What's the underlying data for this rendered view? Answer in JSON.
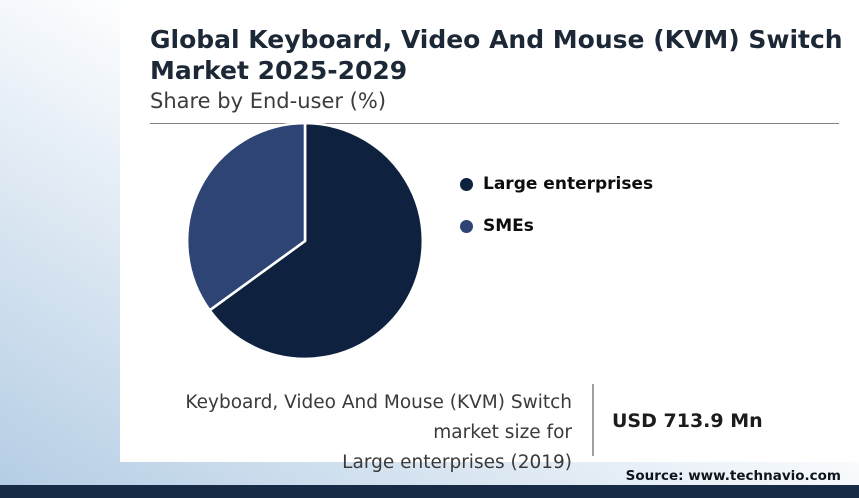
{
  "header": {
    "title": "Global Keyboard, Video And Mouse (KVM) Switch\nMarket 2025-2029",
    "subtitle": "Share by End-user (%)"
  },
  "chart_data": {
    "type": "pie",
    "title": "Global Keyboard, Video And Mouse (KVM) Switch Market 2025-2029",
    "subtitle": "Share by End-user (%)",
    "legend_position": "right",
    "start_angle_deg": 0,
    "direction": "clockwise",
    "slices": [
      {
        "label": "Large enterprises",
        "value": 65,
        "color": "#0e2240"
      },
      {
        "label": "SMEs",
        "value": 35,
        "color": "#2e4474"
      }
    ]
  },
  "footer": {
    "caption": "Keyboard, Video And Mouse (KVM) Switch market size for\nLarge enterprises (2019)",
    "value": "USD 713.9 Mn",
    "source": "Source: www.technavio.com"
  },
  "colors": {
    "bottom_bar": "#172a46",
    "background_tint": "#b3cce4",
    "divider": "#808080"
  }
}
